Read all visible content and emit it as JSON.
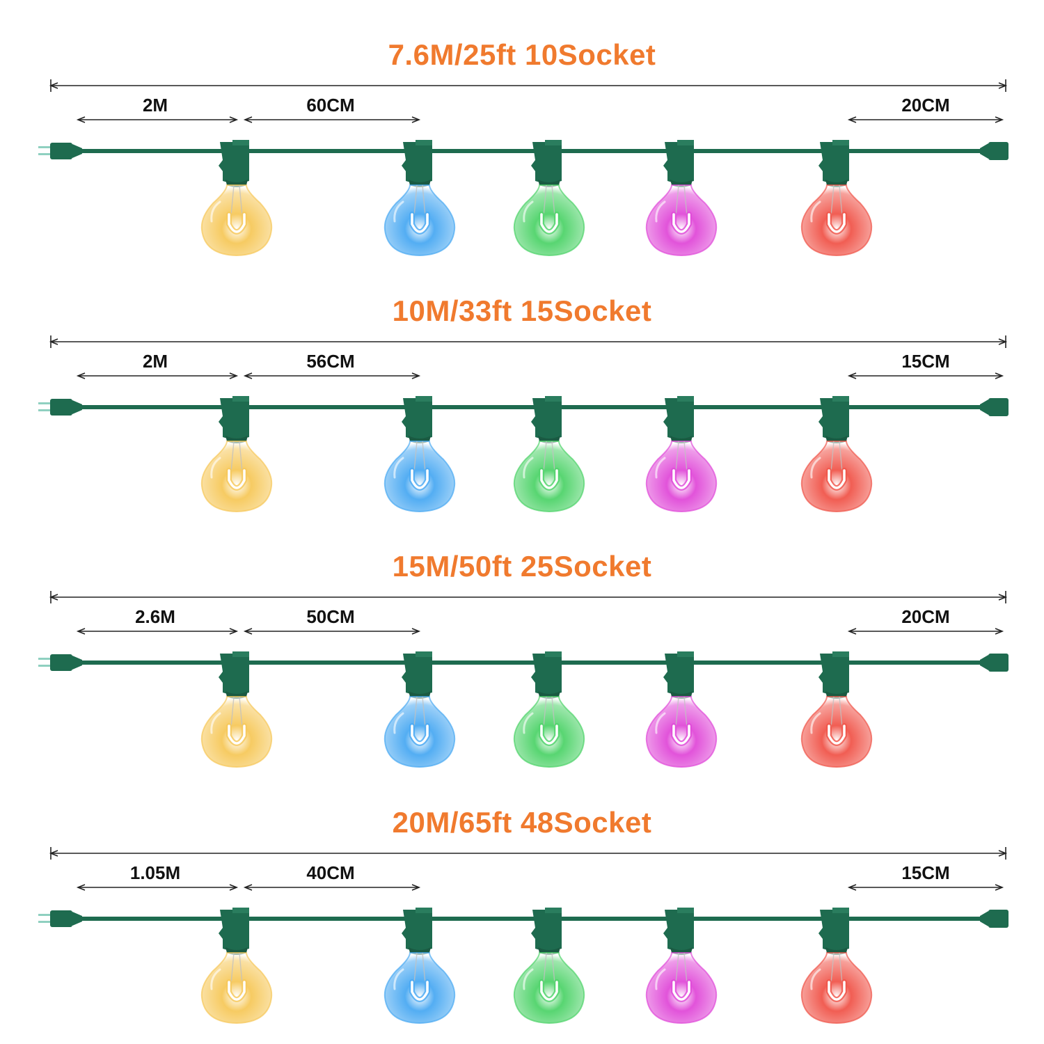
{
  "sections": [
    {
      "title": "7.6M/25ft 10Socket",
      "lead_length": "2M",
      "spacing": "60CM",
      "tail_length": "20CM"
    },
    {
      "title": "10M/33ft 15Socket",
      "lead_length": "2M",
      "spacing": "56CM",
      "tail_length": "15CM"
    },
    {
      "title": "15M/50ft 25Socket",
      "lead_length": "2.6M",
      "spacing": "50CM",
      "tail_length": "20CM"
    },
    {
      "title": "20M/65ft 48Socket",
      "lead_length": "1.05M",
      "spacing": "40CM",
      "tail_length": "15CM"
    }
  ],
  "bulbs": [
    {
      "name": "warm-white",
      "color": "#f6c85a"
    },
    {
      "name": "blue",
      "color": "#4aa9f2"
    },
    {
      "name": "green",
      "color": "#4fd36a"
    },
    {
      "name": "magenta",
      "color": "#e04ad8"
    },
    {
      "name": "red",
      "color": "#f0554a"
    }
  ],
  "colors": {
    "title": "#f07a2e",
    "cord": "#1e6b4f",
    "dimension": "#222222"
  }
}
